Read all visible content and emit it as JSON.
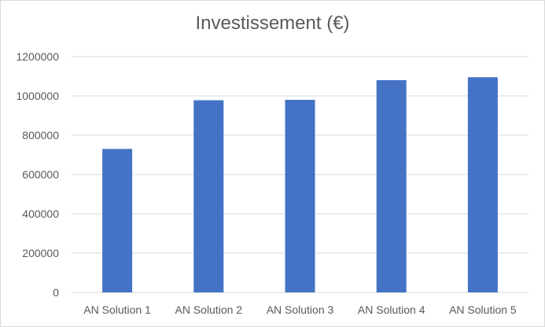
{
  "chart_data": {
    "type": "bar",
    "title": "Investissement (€)",
    "categories": [
      "AN Solution 1",
      "AN Solution 2",
      "AN Solution 3",
      "AN Solution 4",
      "AN Solution 5"
    ],
    "values": [
      730000,
      978000,
      980000,
      1080000,
      1095000
    ],
    "ylim": [
      0,
      1200000
    ],
    "yticks": [
      0,
      200000,
      400000,
      600000,
      800000,
      1000000,
      1200000
    ],
    "grid": true,
    "legend": "none",
    "colors": {
      "bar": "#4472c4",
      "grid": "#d9d9d9",
      "text": "#595959"
    }
  }
}
